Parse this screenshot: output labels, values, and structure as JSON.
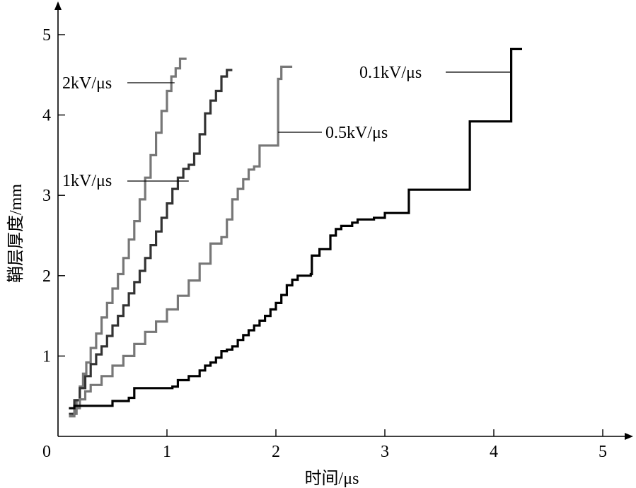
{
  "chart_data": {
    "type": "line",
    "title": "",
    "xlabel": "时间/μs",
    "ylabel": "鞘层厚度/mm",
    "xlim": [
      0,
      5.2
    ],
    "ylim": [
      0,
      5.2
    ],
    "x_ticks": [
      0,
      1,
      2,
      3,
      4,
      5
    ],
    "y_ticks": [
      1,
      2,
      3,
      4,
      5
    ],
    "x_tick_labels": [
      "0",
      "1",
      "2",
      "3",
      "4",
      "5"
    ],
    "y_tick_labels": [
      "1",
      "2",
      "3",
      "4",
      "5"
    ],
    "grid": false,
    "legend": "inline labels",
    "series": [
      {
        "name": "2kV/μs",
        "color": "#777777",
        "label_anchor": [
          1.07,
          4.3
        ],
        "points": [
          [
            0.13,
            0.28
          ],
          [
            0.17,
            0.45
          ],
          [
            0.2,
            0.62
          ],
          [
            0.23,
            0.78
          ],
          [
            0.26,
            0.92
          ],
          [
            0.3,
            1.1
          ],
          [
            0.35,
            1.28
          ],
          [
            0.4,
            1.48
          ],
          [
            0.45,
            1.66
          ],
          [
            0.5,
            1.84
          ],
          [
            0.55,
            2.02
          ],
          [
            0.6,
            2.22
          ],
          [
            0.65,
            2.45
          ],
          [
            0.7,
            2.68
          ],
          [
            0.75,
            2.95
          ],
          [
            0.8,
            3.22
          ],
          [
            0.85,
            3.5
          ],
          [
            0.9,
            3.78
          ],
          [
            0.95,
            4.05
          ],
          [
            1.0,
            4.3
          ],
          [
            1.04,
            4.48
          ],
          [
            1.08,
            4.58
          ],
          [
            1.12,
            4.7
          ],
          [
            1.18,
            4.7
          ]
        ]
      },
      {
        "name": "1kV/μs",
        "color": "#333333",
        "label_anchor": [
          1.2,
          3.2
        ],
        "points": [
          [
            0.1,
            0.28
          ],
          [
            0.15,
            0.45
          ],
          [
            0.2,
            0.6
          ],
          [
            0.25,
            0.75
          ],
          [
            0.3,
            0.9
          ],
          [
            0.35,
            1.02
          ],
          [
            0.4,
            1.12
          ],
          [
            0.45,
            1.25
          ],
          [
            0.5,
            1.38
          ],
          [
            0.55,
            1.5
          ],
          [
            0.6,
            1.63
          ],
          [
            0.65,
            1.78
          ],
          [
            0.7,
            1.92
          ],
          [
            0.75,
            2.06
          ],
          [
            0.8,
            2.22
          ],
          [
            0.85,
            2.38
          ],
          [
            0.9,
            2.55
          ],
          [
            0.95,
            2.72
          ],
          [
            1.0,
            2.9
          ],
          [
            1.05,
            3.08
          ],
          [
            1.1,
            3.22
          ],
          [
            1.15,
            3.33
          ],
          [
            1.2,
            3.38
          ],
          [
            1.25,
            3.52
          ],
          [
            1.3,
            3.76
          ],
          [
            1.35,
            4.02
          ],
          [
            1.4,
            4.18
          ],
          [
            1.45,
            4.3
          ],
          [
            1.5,
            4.48
          ],
          [
            1.55,
            4.56
          ],
          [
            1.6,
            4.56
          ]
        ]
      },
      {
        "name": "0.5kV/μs",
        "color": "#777777",
        "label_anchor": [
          2.02,
          3.78
        ],
        "points": [
          [
            0.1,
            0.25
          ],
          [
            0.15,
            0.35
          ],
          [
            0.2,
            0.46
          ],
          [
            0.25,
            0.56
          ],
          [
            0.3,
            0.64
          ],
          [
            0.4,
            0.75
          ],
          [
            0.5,
            0.88
          ],
          [
            0.6,
            1.0
          ],
          [
            0.7,
            1.15
          ],
          [
            0.8,
            1.3
          ],
          [
            0.9,
            1.43
          ],
          [
            1.0,
            1.58
          ],
          [
            1.1,
            1.75
          ],
          [
            1.2,
            1.94
          ],
          [
            1.3,
            2.15
          ],
          [
            1.4,
            2.4
          ],
          [
            1.5,
            2.48
          ],
          [
            1.55,
            2.7
          ],
          [
            1.6,
            2.95
          ],
          [
            1.65,
            3.08
          ],
          [
            1.7,
            3.2
          ],
          [
            1.75,
            3.32
          ],
          [
            1.8,
            3.36
          ],
          [
            1.85,
            3.62
          ],
          [
            2.02,
            3.62
          ],
          [
            2.02,
            4.45
          ],
          [
            2.05,
            4.6
          ],
          [
            2.15,
            4.6
          ]
        ]
      },
      {
        "name": "0.1kV/μs",
        "color": "#000000",
        "label_anchor": [
          4.16,
          4.5
        ],
        "points": [
          [
            0.1,
            0.35
          ],
          [
            0.15,
            0.38
          ],
          [
            0.45,
            0.38
          ],
          [
            0.5,
            0.44
          ],
          [
            0.65,
            0.48
          ],
          [
            0.7,
            0.6
          ],
          [
            1.05,
            0.62
          ],
          [
            1.1,
            0.7
          ],
          [
            1.2,
            0.75
          ],
          [
            1.3,
            0.82
          ],
          [
            1.35,
            0.88
          ],
          [
            1.4,
            0.92
          ],
          [
            1.45,
            0.98
          ],
          [
            1.5,
            1.06
          ],
          [
            1.55,
            1.08
          ],
          [
            1.6,
            1.12
          ],
          [
            1.65,
            1.2
          ],
          [
            1.7,
            1.26
          ],
          [
            1.75,
            1.32
          ],
          [
            1.8,
            1.38
          ],
          [
            1.85,
            1.44
          ],
          [
            1.9,
            1.5
          ],
          [
            1.95,
            1.58
          ],
          [
            2.0,
            1.66
          ],
          [
            2.05,
            1.76
          ],
          [
            2.1,
            1.88
          ],
          [
            2.15,
            1.95
          ],
          [
            2.2,
            2.0
          ],
          [
            2.32,
            2.02
          ],
          [
            2.33,
            2.25
          ],
          [
            2.4,
            2.33
          ],
          [
            2.5,
            2.5
          ],
          [
            2.55,
            2.58
          ],
          [
            2.6,
            2.62
          ],
          [
            2.65,
            2.62
          ],
          [
            2.7,
            2.66
          ],
          [
            2.75,
            2.7
          ],
          [
            2.9,
            2.72
          ],
          [
            3.0,
            2.78
          ],
          [
            3.2,
            2.78
          ],
          [
            3.22,
            3.07
          ],
          [
            3.78,
            3.07
          ],
          [
            3.78,
            3.92
          ],
          [
            4.16,
            3.92
          ],
          [
            4.16,
            4.82
          ],
          [
            4.26,
            4.82
          ]
        ]
      }
    ]
  }
}
